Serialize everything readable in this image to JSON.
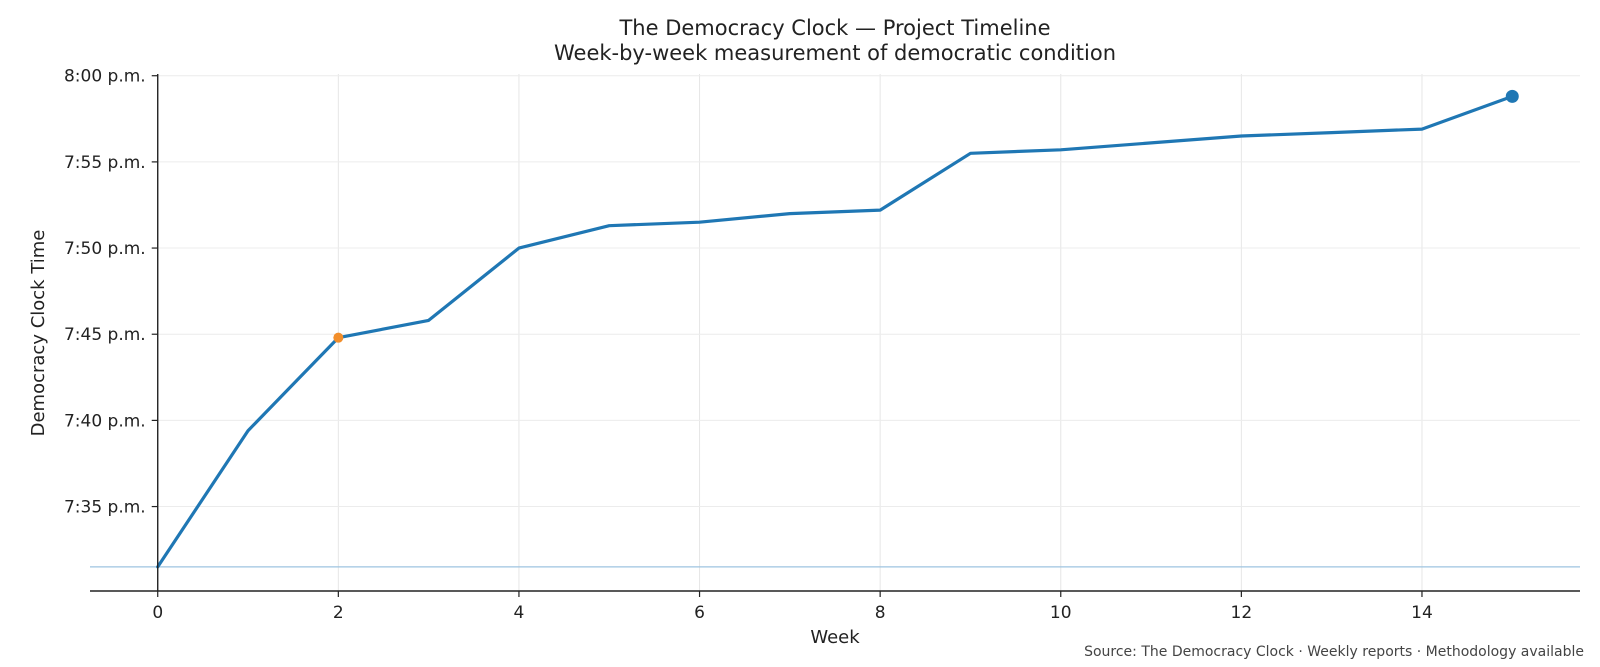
{
  "chart_data": {
    "type": "line",
    "title": "The Democracy Clock — Project Timeline",
    "subtitle": "Week-by-week measurement of democratic condition",
    "xlabel": "Week",
    "ylabel": "Democracy Clock Time",
    "source": "Source: The Democracy Clock · Weekly reports · Methodology available",
    "x_ticks": [
      0,
      2,
      4,
      6,
      8,
      10,
      12,
      14
    ],
    "xlim": [
      -0.75,
      15.75
    ],
    "y_ticks": [
      {
        "minutes": 1175,
        "label": "7:35 p.m."
      },
      {
        "minutes": 1180,
        "label": "7:40 p.m."
      },
      {
        "minutes": 1185,
        "label": "7:45 p.m."
      },
      {
        "minutes": 1190,
        "label": "7:50 p.m."
      },
      {
        "minutes": 1195,
        "label": "7:55 p.m."
      },
      {
        "minutes": 1200,
        "label": "8:00 p.m."
      }
    ],
    "ylim_minutes": [
      1170.1,
      1200.1
    ],
    "y_unit": "minutes after midnight",
    "grid": true,
    "series": [
      {
        "color": "#1f77b4",
        "x": [
          0,
          1,
          2,
          3,
          4,
          5,
          6,
          7,
          8,
          9,
          10,
          11,
          12,
          13,
          14,
          15
        ],
        "y_minutes": [
          1171.5,
          1179.4,
          1184.8,
          1185.8,
          1190.0,
          1191.3,
          1191.5,
          1192.0,
          1192.2,
          1195.5,
          1195.7,
          1196.1,
          1196.5,
          1196.7,
          1196.9,
          1198.8
        ]
      }
    ],
    "baseline_minutes": 1171.5,
    "highlight_points": [
      {
        "x": 2,
        "y_minutes": 1184.8,
        "color": "#f28e2b"
      },
      {
        "x": 15,
        "y_minutes": 1198.8,
        "color": "#1f77b4"
      }
    ]
  }
}
